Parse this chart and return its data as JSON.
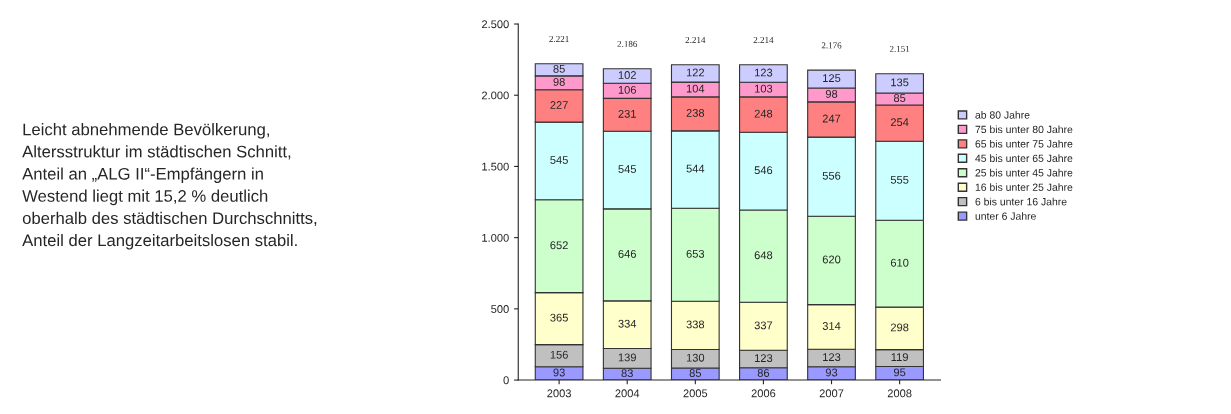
{
  "chart_data": {
    "type": "bar",
    "stacked": true,
    "categories": [
      "2003",
      "2004",
      "2005",
      "2006",
      "2007",
      "2008"
    ],
    "series": [
      {
        "name": "unter 6 Jahre",
        "color": "#9999ff",
        "values": [
          93,
          83,
          85,
          86,
          93,
          95
        ]
      },
      {
        "name": "6 bis unter 16 Jahre",
        "color": "#c0c0c0",
        "values": [
          156,
          139,
          130,
          123,
          123,
          119
        ]
      },
      {
        "name": "16 bis unter 25 Jahre",
        "color": "#ffffcc",
        "values": [
          365,
          334,
          338,
          337,
          314,
          298
        ]
      },
      {
        "name": "25 bis unter 45 Jahre",
        "color": "#ccffcc",
        "values": [
          652,
          646,
          653,
          648,
          620,
          610
        ]
      },
      {
        "name": "45 bis unter 65 Jahre",
        "color": "#ccffff",
        "values": [
          545,
          545,
          544,
          546,
          556,
          555
        ]
      },
      {
        "name": "65 bis unter 75 Jahre",
        "color": "#ff8080",
        "values": [
          227,
          231,
          238,
          248,
          247,
          254
        ]
      },
      {
        "name": "75 bis unter 80 Jahre",
        "color": "#ff99cc",
        "values": [
          98,
          106,
          104,
          103,
          98,
          85
        ]
      },
      {
        "name": "ab 80 Jahre",
        "color": "#ccccff",
        "values": [
          85,
          102,
          122,
          123,
          125,
          135
        ]
      }
    ],
    "totals": [
      "2.221",
      "2.186",
      "2.214",
      "2.214",
      "2.176",
      "2.151"
    ],
    "data_labels": true,
    "ylim": [
      0,
      2500
    ],
    "yticks": [
      {
        "value": 0,
        "label": "0"
      },
      {
        "value": 500,
        "label": "500"
      },
      {
        "value": 1000,
        "label": "1.000"
      },
      {
        "value": 1500,
        "label": "1.500"
      },
      {
        "value": 2000,
        "label": "2.000"
      },
      {
        "value": 2500,
        "label": "2.500"
      }
    ],
    "grid": false,
    "legend": "right",
    "annotations": [
      "Leicht abnehmende Bevölkerung,\nAltersstruktur im städtischen Schnitt,\nAnteil an „ALG II“-Empfängern in\nWestend liegt mit 15,2 % deutlich\noberhalb des städtischen Durchschnitts,\nAnteil der Langzeitarbeitslosen stabil."
    ]
  }
}
